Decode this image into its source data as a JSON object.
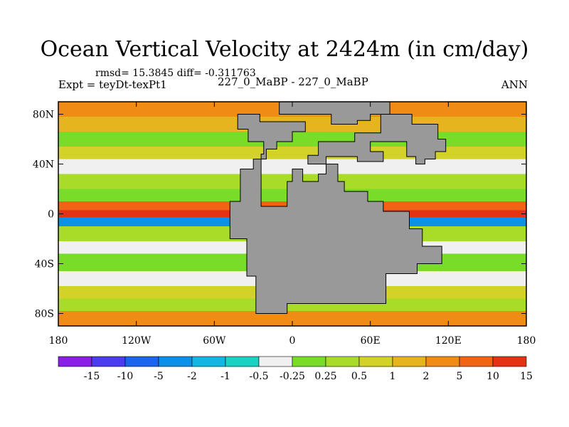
{
  "chart_data": {
    "type": "heatmap",
    "title": "Ocean Vertical Velocity at 2424m (in cm/day)",
    "stats": "rmsd= 15.3845 diff= -0.311763",
    "experiment": "Expt = teyDt-texPt1",
    "case": "227_0_MaBP - 227_0_MaBP",
    "season": "ANN",
    "xlim": [
      -180,
      180
    ],
    "ylim": [
      -90,
      90
    ],
    "x_ticks": [
      {
        "value": -180,
        "label": "180"
      },
      {
        "value": -120,
        "label": "120W"
      },
      {
        "value": -60,
        "label": "60W"
      },
      {
        "value": 0,
        "label": "0"
      },
      {
        "value": 60,
        "label": "60E"
      },
      {
        "value": 120,
        "label": "120E"
      },
      {
        "value": 180,
        "label": "180"
      }
    ],
    "y_ticks": [
      {
        "value": 80,
        "label": "80N"
      },
      {
        "value": 40,
        "label": "40N"
      },
      {
        "value": 0,
        "label": "0"
      },
      {
        "value": -40,
        "label": "40S"
      },
      {
        "value": -80,
        "label": "80S"
      }
    ],
    "missing_color": "#999999",
    "colorbar": {
      "levels": [
        "-15",
        "-10",
        "-5",
        "-2",
        "-1",
        "-0.5",
        "-0.25",
        "0.25",
        "0.5",
        "1",
        "2",
        "5",
        "10",
        "15"
      ],
      "colors": [
        "#8a1ee6",
        "#4b3cf0",
        "#1a64ee",
        "#0a90e8",
        "#12b6e2",
        "#19d2c4",
        "#f0f0f0",
        "#78dc28",
        "#a8dc28",
        "#d2d228",
        "#e6b41e",
        "#f08c14",
        "#f06414",
        "#e63214"
      ]
    }
  }
}
